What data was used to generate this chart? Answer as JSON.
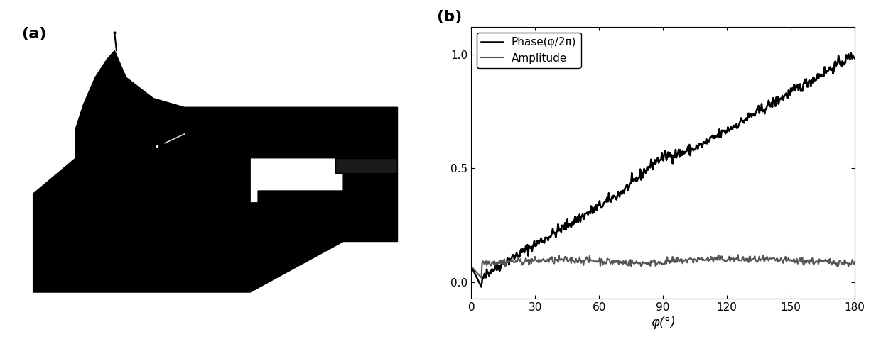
{
  "fig_width": 12.4,
  "fig_height": 4.78,
  "dpi": 100,
  "label_a": "(a)",
  "label_b": "(b)",
  "xlabel": "φ(°)",
  "xticks": [
    0,
    30,
    60,
    90,
    120,
    150,
    180
  ],
  "yticks": [
    0,
    0.5,
    1
  ],
  "xlim": [
    0,
    180
  ],
  "ylim": [
    -0.07,
    1.12
  ],
  "phase_color": "#000000",
  "amplitude_color": "#555555",
  "bg_color": "#ffffff",
  "legend_loc": "upper left",
  "phase_linewidth": 1.8,
  "amplitude_linewidth": 1.5,
  "legend_phase": "Phase(φ/2π)",
  "legend_amplitude": "Amplitude"
}
